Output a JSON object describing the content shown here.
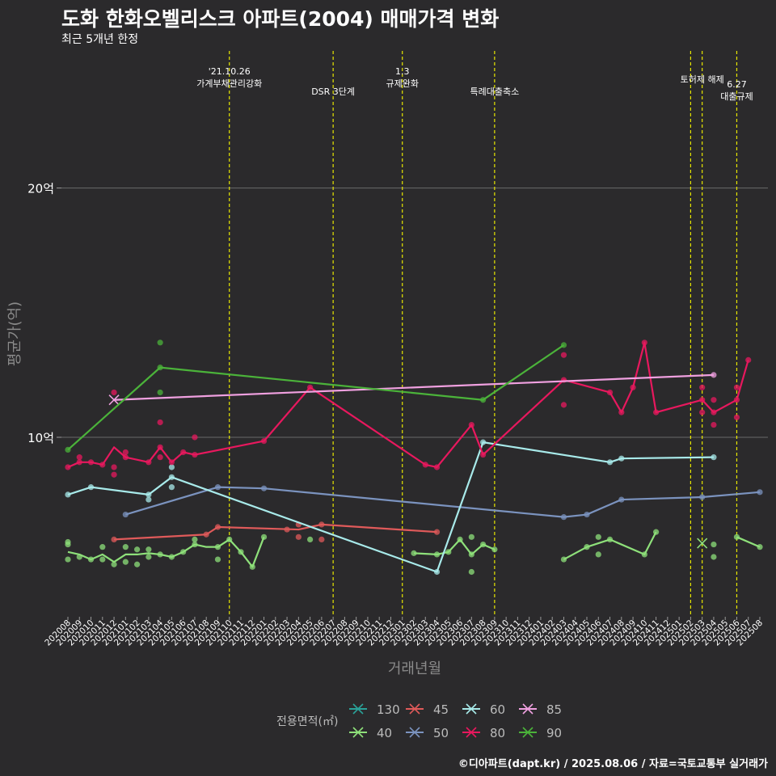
{
  "title": "도화 한화오벨리스크 아파트(2004) 매매가격 변화",
  "subtitle": "최근 5개년 한정",
  "caption": "©디아파트(dapt.kr) / 2025.08.06 / 자료=국토교통부 실거래가",
  "chart_data": {
    "type": "line",
    "xlabel": "거래년월",
    "ylabel": "평균가(억)",
    "ylim": [
      2.8,
      25.5
    ],
    "y_ticks": [
      {
        "value": 10,
        "label": "10억"
      },
      {
        "value": 20,
        "label": "20억"
      }
    ],
    "x_categories": [
      "202008",
      "202009",
      "202010",
      "202011",
      "202012",
      "202101",
      "202102",
      "202103",
      "202104",
      "202105",
      "202106",
      "202107",
      "202108",
      "202109",
      "202110",
      "202111",
      "202112",
      "202201",
      "202202",
      "202203",
      "202204",
      "202205",
      "202206",
      "202207",
      "202208",
      "202209",
      "202210",
      "202211",
      "202212",
      "202301",
      "202302",
      "202303",
      "202304",
      "202305",
      "202306",
      "202307",
      "202308",
      "202309",
      "202310",
      "202311",
      "202312",
      "202401",
      "202402",
      "202403",
      "202404",
      "202405",
      "202406",
      "202407",
      "202408",
      "202409",
      "202410",
      "202411",
      "202412",
      "202501",
      "202502",
      "202503",
      "202504",
      "202505",
      "202506",
      "202507",
      "202508"
    ],
    "legend_title": "전용면적(㎡)",
    "events": [
      {
        "index": 14,
        "label": [
          "'21.10.26",
          "가계부채관리강화"
        ]
      },
      {
        "index": 23,
        "label": [
          "DSR 3단계"
        ]
      },
      {
        "index": 29,
        "label": [
          "1.3",
          "규제완화"
        ]
      },
      {
        "index": 37,
        "label": [
          "특례대출축소"
        ]
      },
      {
        "index": 54,
        "label": []
      },
      {
        "index": 55,
        "label": [
          "토허제 해제"
        ]
      },
      {
        "index": 58,
        "label": [
          "6.27",
          "대출규제"
        ]
      }
    ],
    "series": [
      {
        "name": "130",
        "color": "#2aa198",
        "line": [],
        "points": []
      },
      {
        "name": "40",
        "color": "#8ee07a",
        "line": [
          [
            0,
            5.4
          ],
          [
            1,
            5.3
          ],
          [
            2,
            5.1
          ],
          [
            3,
            5.3
          ],
          [
            4,
            5.0
          ],
          [
            5,
            5.3
          ],
          [
            6,
            5.3
          ],
          [
            7,
            5.35
          ],
          [
            8,
            5.3
          ],
          [
            9,
            5.2
          ],
          [
            10,
            5.4
          ],
          [
            11,
            5.7
          ],
          [
            12,
            5.6
          ],
          [
            13,
            5.6
          ],
          [
            14,
            5.9
          ],
          [
            15,
            5.4
          ],
          [
            16,
            4.8
          ],
          [
            17,
            6.0
          ],
          [
            null,
            null
          ],
          [
            30,
            5.35
          ],
          [
            32,
            5.3
          ],
          [
            33,
            5.4
          ],
          [
            34,
            5.9
          ],
          [
            35,
            5.3
          ],
          [
            36,
            5.7
          ],
          [
            37,
            5.5
          ],
          [
            null,
            null
          ],
          [
            43,
            5.1
          ],
          [
            45,
            5.6
          ],
          [
            47,
            5.9
          ],
          [
            50,
            5.3
          ],
          [
            51,
            6.2
          ],
          [
            null,
            null
          ],
          [
            58,
            6.0
          ],
          [
            60,
            5.6
          ]
        ],
        "points": [
          [
            0,
            5.1
          ],
          [
            0,
            5.7
          ],
          [
            0,
            5.8
          ],
          [
            1,
            5.2
          ],
          [
            2,
            5.1
          ],
          [
            3,
            5.1
          ],
          [
            3,
            5.6
          ],
          [
            4,
            4.9
          ],
          [
            5,
            5.0
          ],
          [
            5,
            5.6
          ],
          [
            6,
            4.9
          ],
          [
            6,
            5.5
          ],
          [
            7,
            5.2
          ],
          [
            7,
            5.5
          ],
          [
            8,
            5.3
          ],
          [
            9,
            5.2
          ],
          [
            10,
            5.4
          ],
          [
            11,
            5.7
          ],
          [
            11,
            5.9
          ],
          [
            13,
            5.1
          ],
          [
            13,
            5.6
          ],
          [
            14,
            5.9
          ],
          [
            15,
            5.4
          ],
          [
            16,
            4.8
          ],
          [
            17,
            6.0
          ],
          [
            21,
            5.9
          ],
          [
            30,
            5.35
          ],
          [
            32,
            5.3
          ],
          [
            33,
            5.4
          ],
          [
            34,
            5.9
          ],
          [
            35,
            5.3
          ],
          [
            35,
            6.0
          ],
          [
            35,
            4.6
          ],
          [
            36,
            5.7
          ],
          [
            37,
            5.5
          ],
          [
            43,
            5.1
          ],
          [
            45,
            5.6
          ],
          [
            46,
            5.3
          ],
          [
            46,
            6.0
          ],
          [
            47,
            5.9
          ],
          [
            50,
            5.3
          ],
          [
            51,
            6.2
          ],
          [
            56,
            5.7
          ],
          [
            56,
            5.2
          ],
          [
            58,
            6.0
          ],
          [
            60,
            5.6
          ]
        ],
        "x_marks": [
          [
            55,
            5.75
          ]
        ]
      },
      {
        "name": "45",
        "color": "#e05a5a",
        "line": [
          [
            4,
            5.9
          ],
          [
            12,
            6.1
          ],
          [
            13,
            6.4
          ],
          [
            20,
            6.3
          ],
          [
            22,
            6.5
          ],
          [
            32,
            6.2
          ]
        ],
        "points": [
          [
            4,
            5.9
          ],
          [
            12,
            6.1
          ],
          [
            13,
            6.4
          ],
          [
            19,
            6.3
          ],
          [
            20,
            6.0
          ],
          [
            20,
            6.5
          ],
          [
            22,
            6.5
          ],
          [
            22,
            5.9
          ],
          [
            32,
            6.2
          ]
        ]
      },
      {
        "name": "50",
        "color": "#7b93bf",
        "line": [
          [
            5,
            6.9
          ],
          [
            13,
            8.0
          ],
          [
            17,
            7.95
          ],
          [
            43,
            6.8
          ],
          [
            45,
            6.9
          ],
          [
            48,
            7.5
          ],
          [
            55,
            7.6
          ],
          [
            60,
            7.8
          ]
        ],
        "points": [
          [
            5,
            6.9
          ],
          [
            13,
            8.0
          ],
          [
            17,
            7.95
          ],
          [
            43,
            6.8
          ],
          [
            45,
            6.9
          ],
          [
            48,
            7.5
          ],
          [
            55,
            7.6
          ],
          [
            60,
            7.8
          ]
        ]
      },
      {
        "name": "60",
        "color": "#a8eaea",
        "line": [
          [
            0,
            7.7
          ],
          [
            2,
            8.0
          ],
          [
            7,
            7.7
          ],
          [
            9,
            8.4
          ],
          [
            32,
            4.6
          ],
          [
            36,
            9.8
          ],
          [
            47,
            9.0
          ],
          [
            48,
            9.15
          ],
          [
            56,
            9.2
          ]
        ],
        "points": [
          [
            0,
            7.7
          ],
          [
            2,
            8.0
          ],
          [
            7,
            7.7
          ],
          [
            7,
            7.5
          ],
          [
            9,
            8.4
          ],
          [
            9,
            8.8
          ],
          [
            9,
            8.0
          ],
          [
            32,
            4.6
          ],
          [
            36,
            9.8
          ],
          [
            47,
            9.0
          ],
          [
            48,
            9.15
          ],
          [
            56,
            9.2
          ]
        ]
      },
      {
        "name": "80",
        "color": "#e8185e",
        "line": [
          [
            0,
            8.8
          ],
          [
            1,
            9.0
          ],
          [
            2,
            9.0
          ],
          [
            3,
            8.9
          ],
          [
            4,
            9.6
          ],
          [
            5,
            9.2
          ],
          [
            7,
            9.0
          ],
          [
            8,
            9.6
          ],
          [
            9,
            9.0
          ],
          [
            10,
            9.4
          ],
          [
            11,
            9.3
          ],
          [
            17,
            9.85
          ],
          [
            21,
            12.0
          ],
          [
            31,
            8.9
          ],
          [
            32,
            8.8
          ],
          [
            35,
            10.5
          ],
          [
            36,
            9.3
          ],
          [
            43,
            12.3
          ],
          [
            47,
            11.8
          ],
          [
            48,
            11.0
          ],
          [
            49,
            12.0
          ],
          [
            50,
            13.8
          ],
          [
            51,
            11.0
          ],
          [
            55,
            11.5
          ],
          [
            56,
            11.0
          ],
          [
            58,
            11.5
          ],
          [
            59,
            13.1
          ]
        ],
        "points": [
          [
            0,
            8.8
          ],
          [
            1,
            9.0
          ],
          [
            1,
            9.2
          ],
          [
            2,
            9.0
          ],
          [
            3,
            8.9
          ],
          [
            4,
            8.5
          ],
          [
            4,
            8.8
          ],
          [
            4,
            11.8
          ],
          [
            5,
            9.2
          ],
          [
            5,
            9.4
          ],
          [
            7,
            9.0
          ],
          [
            8,
            9.2
          ],
          [
            8,
            9.6
          ],
          [
            8,
            10.6
          ],
          [
            9,
            9.0
          ],
          [
            10,
            9.4
          ],
          [
            11,
            9.3
          ],
          [
            11,
            10.0
          ],
          [
            17,
            9.85
          ],
          [
            21,
            12.0
          ],
          [
            31,
            8.9
          ],
          [
            32,
            8.8
          ],
          [
            35,
            10.5
          ],
          [
            36,
            9.3
          ],
          [
            43,
            12.3
          ],
          [
            43,
            13.3
          ],
          [
            43,
            11.3
          ],
          [
            47,
            11.8
          ],
          [
            48,
            11.0
          ],
          [
            49,
            12.0
          ],
          [
            50,
            13.8
          ],
          [
            51,
            11.0
          ],
          [
            55,
            11.5
          ],
          [
            55,
            12.0
          ],
          [
            55,
            11.0
          ],
          [
            56,
            11.0
          ],
          [
            56,
            11.5
          ],
          [
            56,
            10.5
          ],
          [
            58,
            11.5
          ],
          [
            58,
            12.0
          ],
          [
            58,
            10.8
          ],
          [
            59,
            13.1
          ]
        ]
      },
      {
        "name": "85",
        "color": "#f0a0e0",
        "line": [
          [
            4,
            11.5
          ],
          [
            56,
            12.5
          ]
        ],
        "points": [
          [
            56,
            12.5
          ]
        ],
        "x_marks": [
          [
            4,
            11.5
          ]
        ]
      },
      {
        "name": "90",
        "color": "#4bb33a",
        "line": [
          [
            0,
            9.5
          ],
          [
            8,
            12.8
          ],
          [
            36,
            11.5
          ],
          [
            43,
            13.7
          ]
        ],
        "points": [
          [
            0,
            9.5
          ],
          [
            8,
            12.8
          ],
          [
            8,
            11.8
          ],
          [
            8,
            13.8
          ],
          [
            36,
            11.5
          ],
          [
            43,
            13.7
          ]
        ]
      }
    ]
  }
}
